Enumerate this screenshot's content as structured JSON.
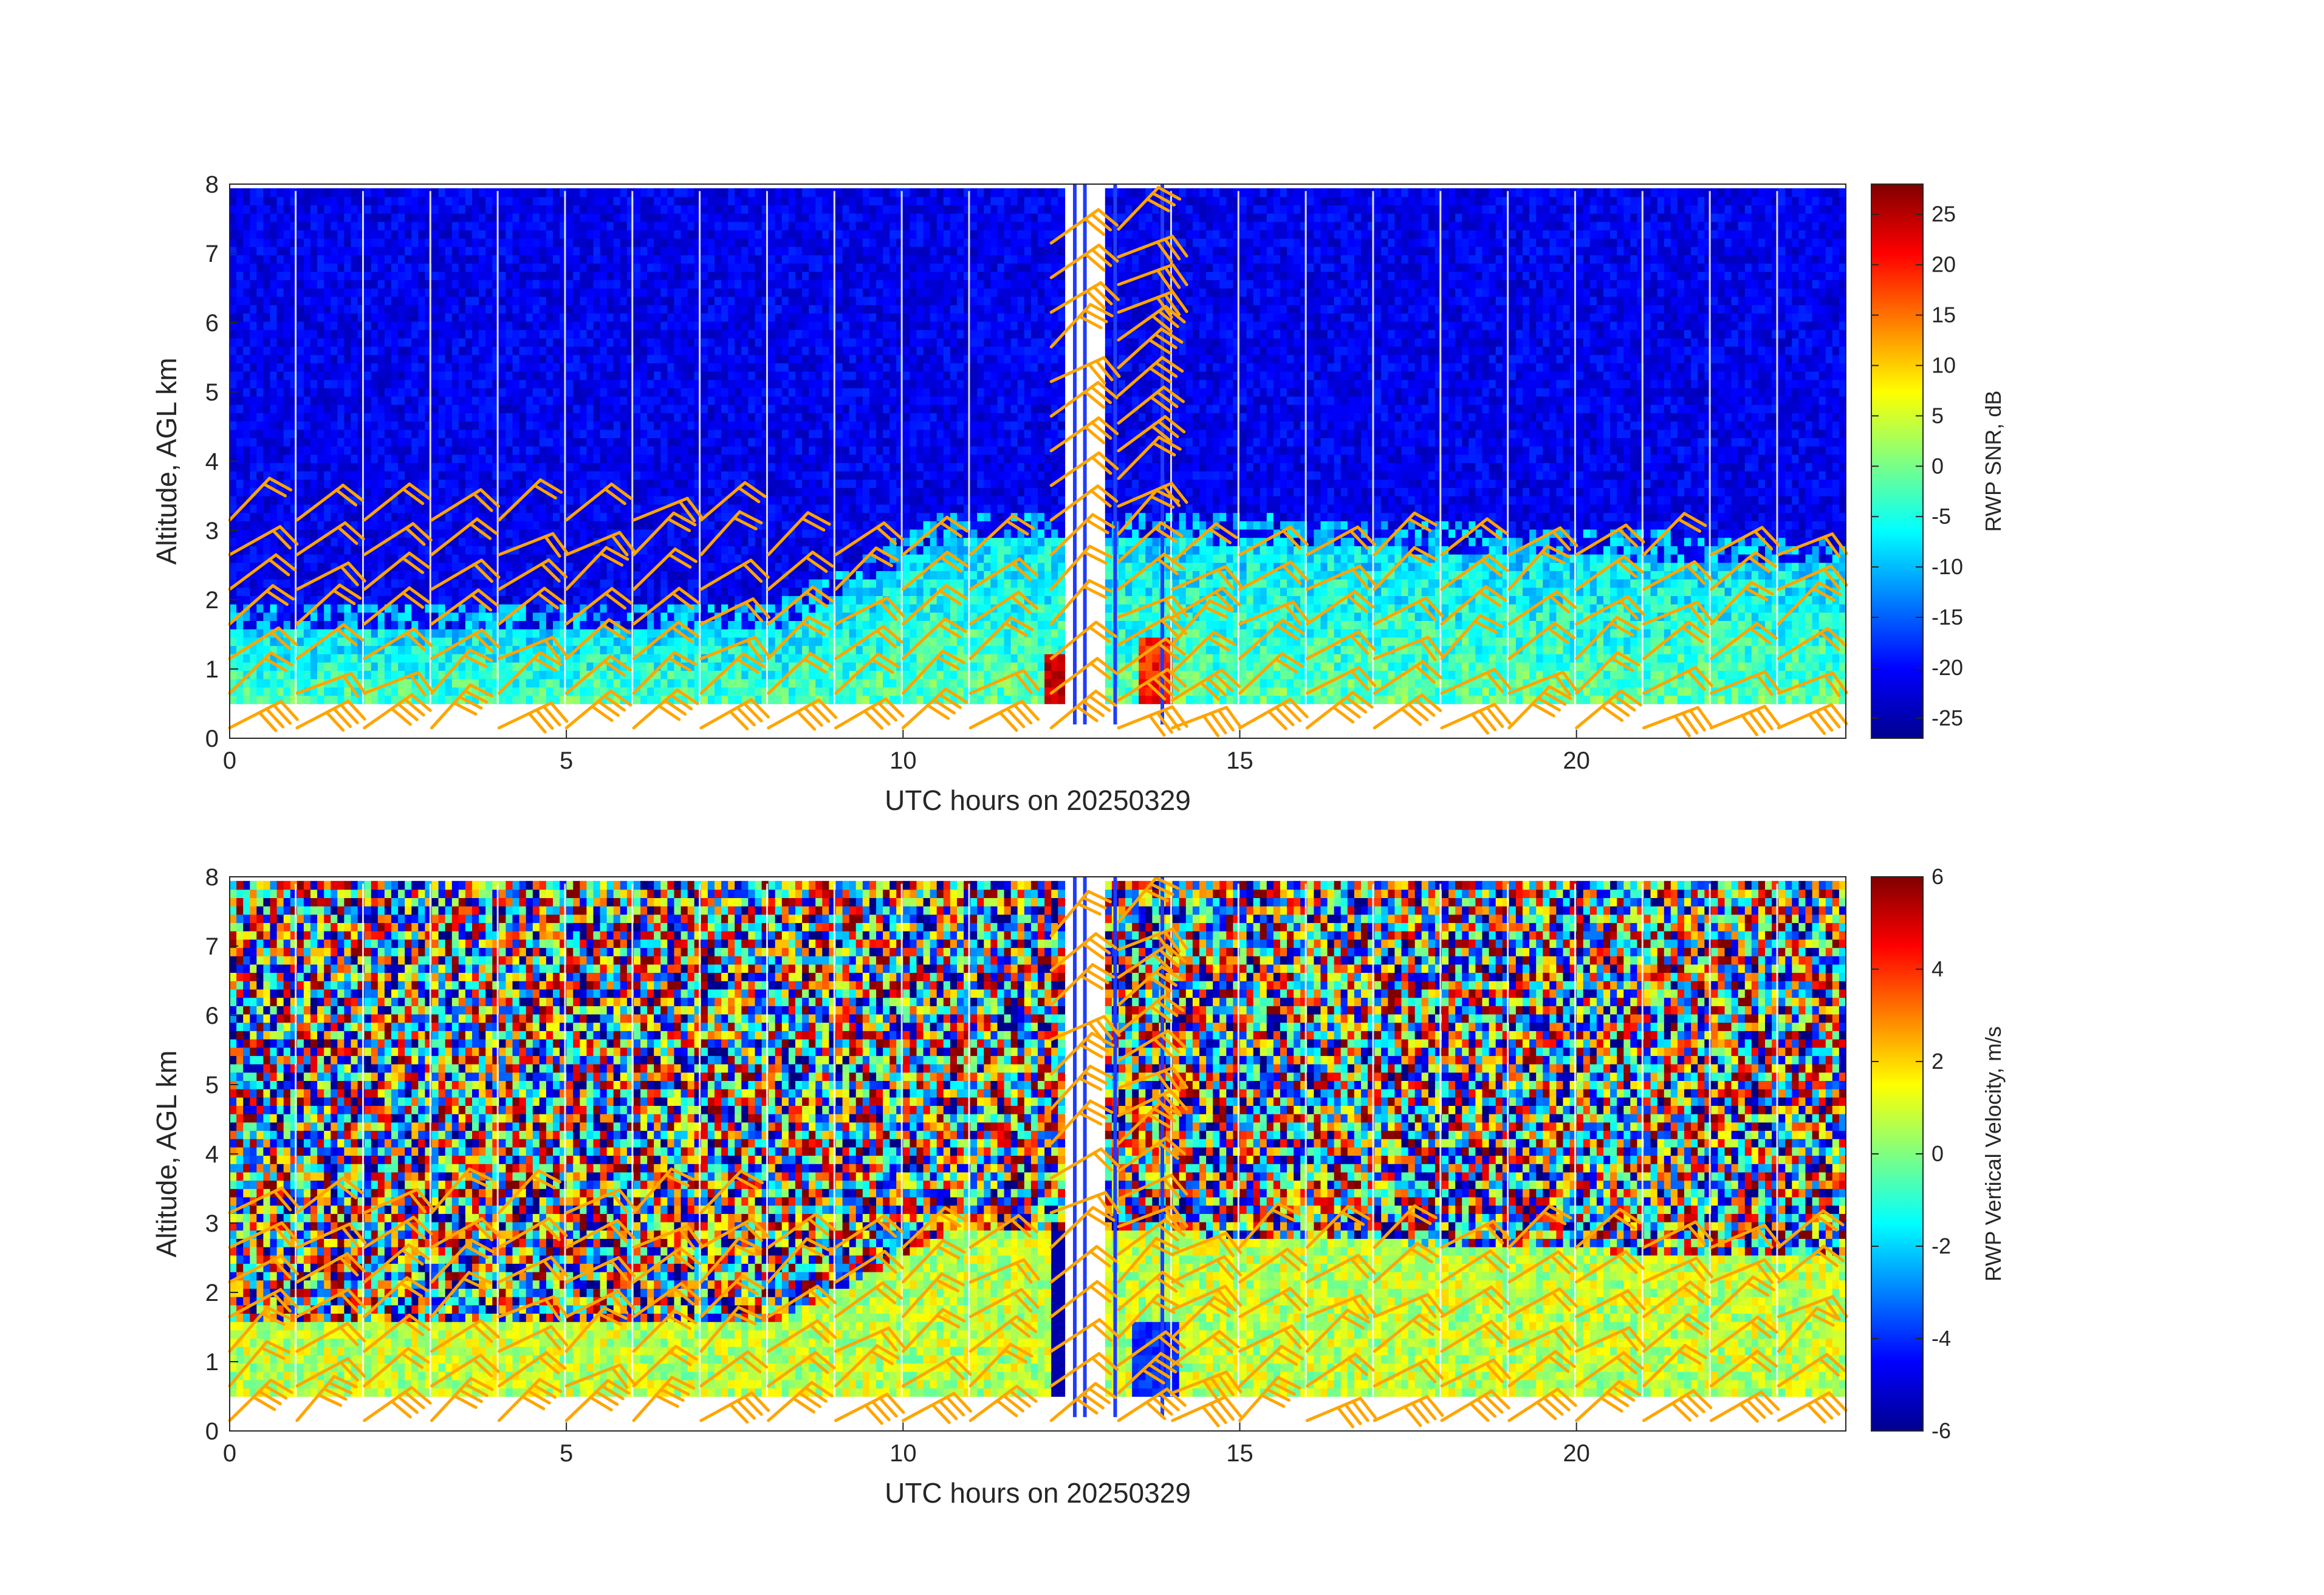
{
  "chart_data": [
    {
      "type": "heatmap",
      "xlabel": "UTC hours on 20250329",
      "ylabel": "Altitude, AGL km",
      "xlim": [
        0,
        24
      ],
      "ylim": [
        0,
        8
      ],
      "xticks": [
        0,
        5,
        10,
        15,
        20
      ],
      "yticks": [
        0,
        1,
        2,
        3,
        4,
        5,
        6,
        7,
        8
      ],
      "colormap": "jet",
      "colorbar": {
        "label": "RWP SNR, dB",
        "range": [
          -27,
          28
        ],
        "ticks": [
          25,
          20,
          15,
          10,
          5,
          0,
          -5,
          -10,
          -15,
          -20,
          -25
        ]
      },
      "data_range_km": [
        0.5,
        7.9
      ],
      "overlay": "wind barbs",
      "barb_color": "#ffa500"
    },
    {
      "type": "heatmap",
      "xlabel": "UTC hours on 20250329",
      "ylabel": "Altitude, AGL km",
      "xlim": [
        0,
        24
      ],
      "ylim": [
        0,
        8
      ],
      "xticks": [
        0,
        5,
        10,
        15,
        20
      ],
      "yticks": [
        0,
        1,
        2,
        3,
        4,
        5,
        6,
        7,
        8
      ],
      "colormap": "jet",
      "colorbar": {
        "label": "RWP Vertical Velocity, m/s",
        "range": [
          -6,
          6
        ],
        "ticks": [
          6,
          4,
          2,
          0,
          -2,
          -4,
          -6
        ]
      },
      "data_range_km": [
        0.5,
        7.9
      ],
      "overlay": "wind barbs",
      "barb_color": "#ffa500"
    }
  ]
}
